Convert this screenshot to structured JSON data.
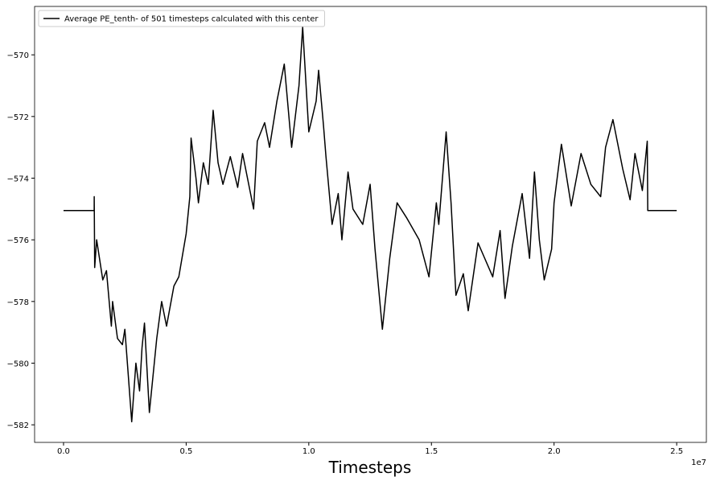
{
  "chart_data": {
    "type": "line",
    "xlabel": "Timesteps",
    "x_offset_label": "1e7",
    "x": [
      0,
      1250000,
      1251000,
      1270000,
      1350000,
      1600000,
      1750000,
      1950000,
      2000000,
      2200000,
      2400000,
      2500000,
      2650000,
      2780000,
      2950000,
      3100000,
      3200000,
      3300000,
      3500000,
      3800000,
      4000000,
      4200000,
      4500000,
      4700000,
      5000000,
      5150000,
      5200000,
      5400000,
      5500000,
      5700000,
      5900000,
      6100000,
      6300000,
      6500000,
      6800000,
      7100000,
      7300000,
      7750000,
      7900000,
      8200000,
      8400000,
      8700000,
      9000000,
      9300000,
      9600000,
      9750000,
      10000000,
      10300000,
      10400000,
      10600000,
      10700000,
      10950000,
      11200000,
      11350000,
      11600000,
      11800000,
      12200000,
      12500000,
      12700000,
      13000000,
      13300000,
      13600000,
      14000000,
      14500000,
      14900000,
      15200000,
      15300000,
      15600000,
      15800000,
      16000000,
      16300000,
      16500000,
      16900000,
      17500000,
      17800000,
      18000000,
      18300000,
      18700000,
      19000000,
      19200000,
      19400000,
      19600000,
      19900000,
      20000000,
      20300000,
      20700000,
      21100000,
      21500000,
      21900000,
      22100000,
      22400000,
      22800000,
      23100000,
      23300000,
      23600000,
      23800000,
      23820000,
      25000000
    ],
    "series": [
      {
        "name": "Average PE_tenth- of 501 timesteps calculated with this center",
        "color": "#000000",
        "values": [
          -575.05,
          -575.05,
          -574.6,
          -576.9,
          -576.0,
          -577.3,
          -577.0,
          -578.8,
          -578.0,
          -579.2,
          -579.4,
          -578.9,
          -580.5,
          -581.9,
          -580.0,
          -580.9,
          -579.5,
          -578.7,
          -581.6,
          -579.2,
          -578.0,
          -578.8,
          -577.5,
          -577.2,
          -575.8,
          -574.6,
          -572.7,
          -574.0,
          -574.8,
          -573.5,
          -574.2,
          -571.8,
          -573.5,
          -574.2,
          -573.3,
          -574.3,
          -573.2,
          -575.0,
          -572.8,
          -572.2,
          -573.0,
          -571.5,
          -570.3,
          -573.0,
          -571.0,
          -569.1,
          -572.5,
          -571.5,
          -570.5,
          -572.3,
          -573.3,
          -575.5,
          -574.5,
          -576.0,
          -573.8,
          -575.0,
          -575.5,
          -574.2,
          -576.3,
          -578.9,
          -576.6,
          -574.8,
          -575.3,
          -576.0,
          -577.2,
          -574.8,
          -575.5,
          -572.5,
          -574.8,
          -577.8,
          -577.1,
          -578.3,
          -576.1,
          -577.2,
          -575.7,
          -577.9,
          -576.2,
          -574.5,
          -576.6,
          -573.8,
          -576.0,
          -577.3,
          -576.3,
          -574.8,
          -572.9,
          -574.9,
          -573.2,
          -574.2,
          -574.6,
          -573.0,
          -572.1,
          -573.7,
          -574.7,
          -573.2,
          -574.4,
          -572.8,
          -575.05,
          -575.05
        ]
      }
    ],
    "xlim": [
      -1180000,
      26210000
    ],
    "ylim": [
      -582.57,
      -568.43
    ],
    "xticks": [
      {
        "value": 0,
        "label": "0.0"
      },
      {
        "value": 5000000,
        "label": "0.5"
      },
      {
        "value": 10000000,
        "label": "1.0"
      },
      {
        "value": 15000000,
        "label": "1.5"
      },
      {
        "value": 20000000,
        "label": "2.0"
      },
      {
        "value": 25000000,
        "label": "2.5"
      }
    ],
    "yticks": [
      {
        "value": -582,
        "label": "−582"
      },
      {
        "value": -580,
        "label": "−580"
      },
      {
        "value": -578,
        "label": "−578"
      },
      {
        "value": -576,
        "label": "−576"
      },
      {
        "value": -574,
        "label": "−574"
      },
      {
        "value": -572,
        "label": "−572"
      },
      {
        "value": -570,
        "label": "−570"
      }
    ],
    "legend": "upper left",
    "grid": false
  }
}
